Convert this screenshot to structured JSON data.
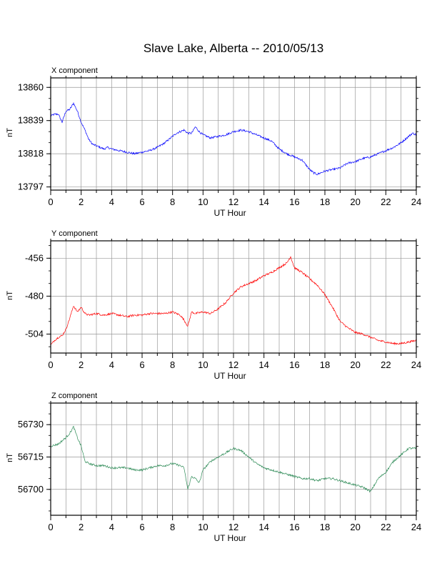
{
  "title": "Slave Lake, Alberta -- 2010/05/13",
  "chart_data": [
    {
      "type": "line",
      "title": "X component",
      "xlabel": "UT Hour",
      "ylabel": "nT",
      "xlim": [
        0,
        24
      ],
      "ylim": [
        13795,
        13866
      ],
      "xticks": [
        0,
        2,
        4,
        6,
        8,
        10,
        12,
        14,
        16,
        18,
        20,
        22,
        24
      ],
      "yticks": [
        13797,
        13818,
        13839,
        13860
      ],
      "grid": true,
      "color": "#0000ff",
      "series": [
        {
          "x": [
            0,
            0.25,
            0.5,
            0.75,
            1.0,
            1.25,
            1.5,
            1.75,
            2.0,
            2.25,
            2.5,
            2.75,
            3.0,
            3.25,
            3.5,
            3.75,
            4.0,
            4.5,
            5.0,
            5.5,
            6.0,
            6.5,
            7.0,
            7.5,
            8.0,
            8.25,
            8.5,
            8.75,
            9.0,
            9.25,
            9.5,
            9.75,
            10.0,
            10.25,
            10.5,
            11.0,
            11.5,
            12.0,
            12.5,
            13.0,
            13.5,
            14.0,
            14.5,
            15.0,
            15.5,
            16.0,
            16.5,
            17.0,
            17.25,
            17.5,
            17.75,
            18.0,
            18.5,
            19.0,
            19.5,
            20.0,
            20.5,
            21.0,
            21.5,
            22.0,
            22.5,
            23.0,
            23.5,
            23.75,
            24.0
          ],
          "y": [
            13842,
            13843,
            13843,
            13838,
            13845,
            13846,
            13850,
            13845,
            13838,
            13833,
            13827,
            13824,
            13823,
            13822,
            13821,
            13822,
            13821,
            13820,
            13819,
            13818,
            13819,
            13820,
            13822,
            13825,
            13829,
            13831,
            13832,
            13833,
            13831,
            13831,
            13835,
            13832,
            13830,
            13829,
            13828,
            13829,
            13830,
            13832,
            13833,
            13832,
            13830,
            13828,
            13826,
            13821,
            13818,
            13816,
            13814,
            13808,
            13806,
            13805,
            13806,
            13807,
            13808,
            13809,
            13812,
            13813,
            13815,
            13816,
            13818,
            13820,
            13822,
            13825,
            13829,
            13831,
            13830
          ]
        }
      ]
    },
    {
      "type": "line",
      "title": "Y component",
      "xlabel": "UT Hour",
      "ylabel": "nT",
      "xlim": [
        0,
        24
      ],
      "ylim": [
        -516,
        -445
      ],
      "xticks": [
        0,
        2,
        4,
        6,
        8,
        10,
        12,
        14,
        16,
        18,
        20,
        22,
        24
      ],
      "yticks": [
        -456,
        -480,
        -504
      ],
      "grid": true,
      "color": "#ff0000",
      "series": [
        {
          "x": [
            0,
            0.25,
            0.5,
            0.75,
            1.0,
            1.25,
            1.5,
            1.75,
            2.0,
            2.25,
            2.5,
            3.0,
            3.5,
            4.0,
            4.5,
            5.0,
            5.5,
            6.0,
            6.5,
            7.0,
            7.5,
            8.0,
            8.5,
            8.75,
            9.0,
            9.25,
            9.5,
            10.0,
            10.5,
            11.0,
            11.5,
            12.0,
            12.5,
            13.0,
            13.5,
            14.0,
            14.5,
            15.0,
            15.5,
            15.75,
            16.0,
            16.5,
            17.0,
            17.5,
            18.0,
            18.5,
            19.0,
            19.5,
            20.0,
            20.5,
            21.0,
            21.5,
            22.0,
            22.5,
            23.0,
            23.5,
            24.0
          ],
          "y": [
            -511,
            -508,
            -506,
            -505,
            -501,
            -494,
            -486,
            -490,
            -487,
            -491,
            -492,
            -491,
            -492,
            -491,
            -492,
            -493,
            -492,
            -492,
            -491,
            -491,
            -491,
            -490,
            -492,
            -495,
            -499,
            -490,
            -491,
            -490,
            -491,
            -488,
            -484,
            -478,
            -474,
            -472,
            -470,
            -467,
            -465,
            -462,
            -459,
            -455,
            -462,
            -465,
            -469,
            -473,
            -479,
            -487,
            -496,
            -500,
            -503,
            -504,
            -506,
            -508,
            -509,
            -510,
            -510,
            -509,
            -508
          ]
        }
      ]
    },
    {
      "type": "line",
      "title": "Z component",
      "xlabel": "UT Hour",
      "ylabel": "nT",
      "xlim": [
        0,
        24
      ],
      "ylim": [
        56688,
        56740
      ],
      "xticks": [
        0,
        2,
        4,
        6,
        8,
        10,
        12,
        14,
        16,
        18,
        20,
        22,
        24
      ],
      "yticks": [
        56700,
        56715,
        56730
      ],
      "grid": true,
      "color": "#2e8b57",
      "series": [
        {
          "x": [
            0,
            0.5,
            1.0,
            1.25,
            1.5,
            1.75,
            2.0,
            2.25,
            2.5,
            3.0,
            3.5,
            4.0,
            4.5,
            5.0,
            5.5,
            6.0,
            6.5,
            7.0,
            7.5,
            8.0,
            8.5,
            8.75,
            9.0,
            9.25,
            9.5,
            9.75,
            10.0,
            10.25,
            10.5,
            11.0,
            11.5,
            12.0,
            12.5,
            13.0,
            13.5,
            14.0,
            14.5,
            15.0,
            15.5,
            16.0,
            16.5,
            17.0,
            17.5,
            18.0,
            18.5,
            19.0,
            19.5,
            20.0,
            20.5,
            21.0,
            21.5,
            22.0,
            22.5,
            23.0,
            23.5,
            24.0
          ],
          "y": [
            56720,
            56721,
            56724,
            56726,
            56729,
            56724,
            56720,
            56713,
            56712,
            56711,
            56711,
            56710,
            56710,
            56710,
            56709,
            56709,
            56710,
            56711,
            56711,
            56712,
            56711,
            56710,
            56700,
            56706,
            56705,
            56703,
            56709,
            56711,
            56713,
            56715,
            56717,
            56719,
            56718,
            56715,
            56712,
            56710,
            56709,
            56708,
            56707,
            56706,
            56705,
            56705,
            56704,
            56705,
            56705,
            56704,
            56703,
            56702,
            56701,
            56699,
            56705,
            56708,
            56713,
            56716,
            56719,
            56719
          ]
        }
      ]
    }
  ]
}
